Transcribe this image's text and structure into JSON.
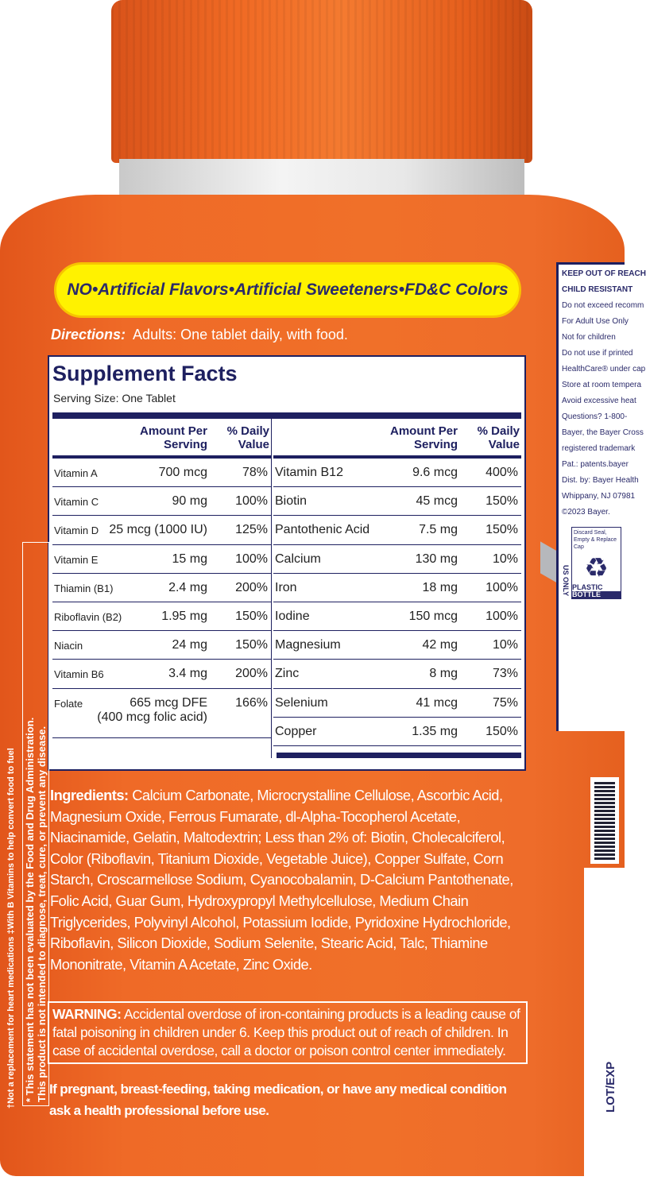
{
  "banner": "NO•Artificial Flavors•Artificial Sweeteners•FD&C Colors",
  "directions": {
    "label": "Directions:",
    "text": "Adults:  One tablet daily, with food."
  },
  "facts": {
    "title": "Supplement Facts",
    "serving_size": "Serving Size: One Tablet",
    "header_amount": "Amount Per Serving",
    "header_dv": "% Daily Value",
    "left": [
      {
        "name": "Vitamin A",
        "amount": "700 mcg",
        "dv": "78%"
      },
      {
        "name": "Vitamin C",
        "amount": "90 mg",
        "dv": "100%"
      },
      {
        "name": "Vitamin D",
        "amount": "25 mcg (1000 IU)",
        "dv": "125%"
      },
      {
        "name": "Vitamin E",
        "amount": "15 mg",
        "dv": "100%"
      },
      {
        "name": "Thiamin (B1)",
        "amount": "2.4 mg",
        "dv": "200%"
      },
      {
        "name": "Riboflavin (B2)",
        "amount": "1.95 mg",
        "dv": "150%"
      },
      {
        "name": "Niacin",
        "amount": "24 mg",
        "dv": "150%"
      },
      {
        "name": "Vitamin B6",
        "amount": "3.4 mg",
        "dv": "200%"
      },
      {
        "name": "Folate",
        "amount": "665 mcg DFE",
        "amount2": "(400 mcg folic acid)",
        "dv": "166%"
      }
    ],
    "right": [
      {
        "name": "Vitamin B12",
        "amount": "9.6 mcg",
        "dv": "400%"
      },
      {
        "name": "Biotin",
        "amount": "45 mcg",
        "dv": "150%"
      },
      {
        "name": "Pantothenic Acid",
        "amount": "7.5 mg",
        "dv": "150%"
      },
      {
        "name": "Calcium",
        "amount": "130 mg",
        "dv": "10%"
      },
      {
        "name": "Iron",
        "amount": "18 mg",
        "dv": "100%"
      },
      {
        "name": "Iodine",
        "amount": "150 mcg",
        "dv": "100%"
      },
      {
        "name": "Magnesium",
        "amount": "42 mg",
        "dv": "10%"
      },
      {
        "name": "Zinc",
        "amount": "8 mg",
        "dv": "73%"
      },
      {
        "name": "Selenium",
        "amount": "41 mcg",
        "dv": "75%"
      },
      {
        "name": "Copper",
        "amount": "1.35 mg",
        "dv": "150%"
      }
    ]
  },
  "ingredients": {
    "label": "Ingredients:",
    "text": "Calcium Carbonate, Microcrystalline Cellulose, Ascorbic Acid, Magnesium Oxide, Ferrous Fumarate, dl-Alpha-Tocopherol Acetate, Niacinamide, Gelatin, Maltodextrin; Less than 2% of: Biotin, Cholecalciferol, Color (Riboflavin, Titanium Dioxide, Vegetable Juice), Copper Sulfate, Corn Starch, Croscarmellose Sodium, Cyanocobalamin, D-Calcium Pantothenate, Folic Acid, Guar Gum, Hydroxypropyl Methylcellulose, Medium Chain Triglycerides, Polyvinyl Alcohol, Potassium Iodide, Pyridoxine Hydrochloride, Riboflavin, Silicon Dioxide, Sodium Selenite, Stearic Acid, Talc, Thiamine Mononitrate, Vitamin A Acetate, Zinc Oxide."
  },
  "warning": {
    "label": "WARNING:",
    "text": "Accidental overdose of iron-containing products is a leading cause of fatal poisoning in children under 6. Keep this product out of reach of children. In case of accidental overdose, call a doctor or poison control center immediately."
  },
  "pregnant": "If pregnant, breast-feeding, taking medication, or have any medical condition ask a health professional before use.",
  "side_notes": {
    "line1": "†Not a replacement for heart medications     ‡With B Vitamins to help convert food to fuel",
    "disclaimer1": "* This statement has not been evaluated by the Food and Drug Administration.",
    "disclaimer2": "This product is not intended to diagnose, treat, cure, or prevent any disease."
  },
  "right_label": {
    "lines": [
      "KEEP OUT OF REACH",
      "CHILD RESISTANT",
      "Do not exceed recomm",
      "For Adult Use Only",
      "Not for children",
      "Do not use if printed",
      "HealthCare® under cap",
      "Store at room tempera",
      "Avoid excessive heat",
      "Questions? 1-800-",
      "Bayer, the Bayer Cross",
      "registered trademark",
      "Pat.: patents.bayer",
      "Dist. by: Bayer Health",
      "Whippany, NJ 07981",
      "©2023 Bayer."
    ],
    "recycle_top": "Discard Seal, Empty & Replace Cap",
    "recycle_plastic": "PLASTIC",
    "recycle_bottle": "BOTTLE",
    "us_only": "US ONLY"
  },
  "lot_exp": "LOT/EXP",
  "colors": {
    "orange": "#f06a27",
    "navy": "#1e2060",
    "yellow": "#fff200"
  }
}
